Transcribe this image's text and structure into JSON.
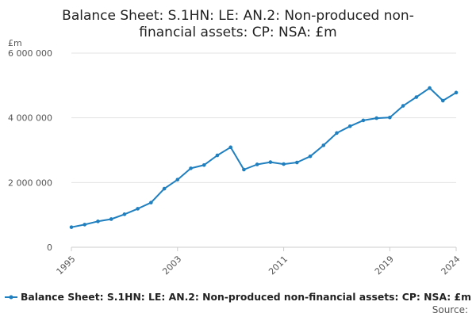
{
  "chart_data": {
    "type": "line",
    "title_lines": [
      "Balance Sheet: S.1HN: LE: AN.2: Non-produced non-",
      "financial assets: CP: NSA: £m"
    ],
    "unit_label": "£m",
    "x": [
      1995,
      1996,
      1997,
      1998,
      1999,
      2000,
      2001,
      2002,
      2003,
      2004,
      2005,
      2006,
      2007,
      2008,
      2009,
      2010,
      2011,
      2012,
      2013,
      2014,
      2015,
      2016,
      2017,
      2018,
      2019,
      2020,
      2021,
      2022,
      2023,
      2024
    ],
    "series": [
      {
        "name": "Balance Sheet: S.1HN: LE: AN.2: Non-produced non-financial assets: CP: NSA: £m",
        "color": "#1f7fbf",
        "values": [
          620000,
          700000,
          800000,
          870000,
          1020000,
          1190000,
          1380000,
          1810000,
          2090000,
          2440000,
          2540000,
          2840000,
          3090000,
          2400000,
          2560000,
          2630000,
          2570000,
          2620000,
          2810000,
          3150000,
          3530000,
          3740000,
          3920000,
          3990000,
          4010000,
          4370000,
          4640000,
          4920000,
          4530000,
          4780000
        ]
      }
    ],
    "y_ticks": [
      0,
      2000000,
      4000000,
      6000000
    ],
    "y_tick_labels": [
      "0",
      "2 000 000",
      "4 000 000",
      "6 000 000"
    ],
    "x_ticks": [
      1995,
      2003,
      2011,
      2019,
      2024
    ],
    "x_tick_labels": [
      "1995",
      "2003",
      "2011",
      "2019",
      "2024"
    ],
    "xlim": [
      1995,
      2024
    ],
    "ylim": [
      0,
      6000000
    ],
    "grid": true,
    "legend_position": "bottom",
    "source_label": "Source:"
  }
}
